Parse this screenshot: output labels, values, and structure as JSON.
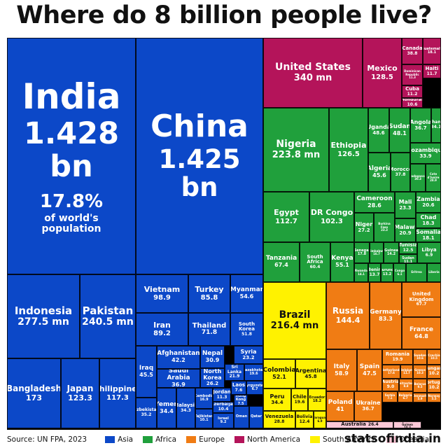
{
  "title": "Where do 8 billion people live?",
  "source": "Source: UN FPA, 2023",
  "brand": "statsofindia.in",
  "colors": {
    "Asia": "#0c48c8",
    "Africa": "#20a03c",
    "Europe": "#f07c14",
    "North America": "#b4145a",
    "South America": "#fff200",
    "Oceania": "#fbc8d7"
  },
  "legend": [
    "Asia",
    "Africa",
    "Europe",
    "North America",
    "South America",
    "Oceania"
  ],
  "chart_data": {
    "type": "treemap",
    "unit_note": "population in millions",
    "items": [
      {
        "name": "India",
        "value": "1.428 bn",
        "extra": "17.8%",
        "extra2": "of world's population",
        "region": "Asia",
        "n": 1428
      },
      {
        "name": "China",
        "value": "1.425 bn",
        "region": "Asia",
        "n": 1425
      },
      {
        "name": "Indonesia",
        "value": "277.5 mn",
        "region": "Asia",
        "n": 277.5
      },
      {
        "name": "Pakistan",
        "value": "240.5 mn",
        "region": "Asia",
        "n": 240.5
      },
      {
        "name": "Bangladesh",
        "value": "173",
        "region": "Asia",
        "n": 173
      },
      {
        "name": "Japan",
        "value": "123.3",
        "region": "Asia",
        "n": 123.3
      },
      {
        "name": "Philippines",
        "value": "117.3",
        "region": "Asia",
        "n": 117.3
      },
      {
        "name": "Vietnam",
        "value": "98.9",
        "region": "Asia",
        "n": 98.9
      },
      {
        "name": "Turkey",
        "value": "85.8",
        "region": "Asia",
        "n": 85.8
      },
      {
        "name": "Myanmar",
        "value": "54.6",
        "region": "Asia",
        "n": 54.6
      },
      {
        "name": "Iran",
        "value": "89.2",
        "region": "Asia",
        "n": 89.2
      },
      {
        "name": "Thailand",
        "value": "71.8",
        "region": "Asia",
        "n": 71.8
      },
      {
        "name": "South Korea",
        "value": "51.8",
        "region": "Asia",
        "n": 51.8
      },
      {
        "name": "Iraq",
        "value": "45.5",
        "region": "Asia",
        "n": 45.5
      },
      {
        "name": "Afghanistan",
        "value": "42.2",
        "region": "Asia",
        "n": 42.2
      },
      {
        "name": "Saudi Arabia",
        "value": "36.9",
        "region": "Asia",
        "n": 36.9
      },
      {
        "name": "Nepal",
        "value": "30.9",
        "region": "Asia",
        "n": 30.9
      },
      {
        "name": "Syria",
        "value": "23.2",
        "region": "Asia",
        "n": 23.2
      },
      {
        "name": "North Korea",
        "value": "26.2",
        "region": "Asia",
        "n": 26.2
      },
      {
        "name": "Sri Lanka",
        "value": "21.9",
        "region": "Asia",
        "n": 21.9
      },
      {
        "name": "Kazakhstan",
        "value": "19.6",
        "region": "Asia",
        "n": 19.6
      },
      {
        "name": "Uzbekistan",
        "value": "35.2",
        "region": "Asia",
        "n": 35.2
      },
      {
        "name": "Yemen",
        "value": "34.4",
        "region": "Asia",
        "n": 34.4
      },
      {
        "name": "Malaysia",
        "value": "34.3",
        "region": "Asia",
        "n": 34.3
      },
      {
        "name": "Jordan",
        "value": "11.3",
        "region": "Asia",
        "n": 11.3
      },
      {
        "name": "Laos",
        "value": "7.6",
        "region": "Asia",
        "n": 7.6
      },
      {
        "name": "Kyrgyzstan",
        "value": "6.7",
        "region": "Asia",
        "n": 6.7
      },
      {
        "name": "Cambodia",
        "value": "16.9",
        "region": "Asia",
        "n": 16.9
      },
      {
        "name": "Azerbaijan",
        "value": "10.4",
        "region": "Asia",
        "n": 10.4
      },
      {
        "name": "Hong Kong",
        "value": "7.5",
        "region": "Asia",
        "n": 7.5
      },
      {
        "name": "Tajikistan",
        "value": "10.1",
        "region": "Asia",
        "n": 10.1
      },
      {
        "name": "Israel",
        "value": "9.2",
        "region": "Asia",
        "n": 9.2
      },
      {
        "name": "Oman",
        "value": "",
        "region": "Asia",
        "n": 4.6
      },
      {
        "name": "Qatar",
        "value": "",
        "region": "Asia",
        "n": 2.7
      },
      {
        "name": "United States",
        "value": "340 mn",
        "region": "North America",
        "n": 340
      },
      {
        "name": "Mexico",
        "value": "128.5",
        "region": "North America",
        "n": 128.5
      },
      {
        "name": "Canada",
        "value": "38.8",
        "region": "North America",
        "n": 38.8
      },
      {
        "name": "Guatemala",
        "value": "18.1",
        "region": "North America",
        "n": 18.1
      },
      {
        "name": "Haiti",
        "value": "11.7",
        "region": "North America",
        "n": 11.7
      },
      {
        "name": "Dominican Republic",
        "value": "11.3",
        "region": "North America",
        "n": 11.3
      },
      {
        "name": "Cuba",
        "value": "11.2",
        "region": "North America",
        "n": 11.2
      },
      {
        "name": "Honduras",
        "value": "10.6",
        "region": "North America",
        "n": 10.6
      },
      {
        "name": "Nigeria",
        "value": "223.8 mn",
        "region": "Africa",
        "n": 223.8
      },
      {
        "name": "Ethiopia",
        "value": "126.5",
        "region": "Africa",
        "n": 126.5
      },
      {
        "name": "Uganda",
        "value": "48.6",
        "region": "Africa",
        "n": 48.6
      },
      {
        "name": "Sudan",
        "value": "48.1",
        "region": "Africa",
        "n": 48.1
      },
      {
        "name": "Angola",
        "value": "36.7",
        "region": "Africa",
        "n": 36.7
      },
      {
        "name": "Ghana",
        "value": "34.1",
        "region": "Africa",
        "n": 34.1
      },
      {
        "name": "Mozambique",
        "value": "33.9",
        "region": "Africa",
        "n": 33.9
      },
      {
        "name": "Algeria",
        "value": "45.6",
        "region": "Africa",
        "n": 45.6
      },
      {
        "name": "Morocco",
        "value": "37.8",
        "region": "Africa",
        "n": 37.8
      },
      {
        "name": "Madagascar",
        "value": "30.3",
        "region": "Africa",
        "n": 30.3
      },
      {
        "name": "Cote d'Ivoire",
        "value": "28.9",
        "region": "Africa",
        "n": 28.9
      },
      {
        "name": "Egypt",
        "value": "112.7",
        "region": "Africa",
        "n": 112.7
      },
      {
        "name": "DR Congo",
        "value": "102.3",
        "region": "Africa",
        "n": 102.3
      },
      {
        "name": "Cameroon",
        "value": "28.6",
        "region": "Africa",
        "n": 28.6
      },
      {
        "name": "Mali",
        "value": "23.3",
        "region": "Africa",
        "n": 23.3
      },
      {
        "name": "Zambia",
        "value": "20.6",
        "region": "Africa",
        "n": 20.6
      },
      {
        "name": "Niger",
        "value": "27.2",
        "region": "Africa",
        "n": 27.2
      },
      {
        "name": "Burkina Faso",
        "value": "23.3",
        "region": "Africa",
        "n": 23.3
      },
      {
        "name": "Malawi",
        "value": "20.9",
        "region": "Africa",
        "n": 20.9
      },
      {
        "name": "Chad",
        "value": "18.3",
        "region": "Africa",
        "n": 18.3
      },
      {
        "name": "Somalia",
        "value": "18.1",
        "region": "Africa",
        "n": 18.1
      },
      {
        "name": "Tanzania",
        "value": "67.4",
        "region": "Africa",
        "n": 67.4
      },
      {
        "name": "South Africa",
        "value": "60.4",
        "region": "Africa",
        "n": 60.4
      },
      {
        "name": "Kenya",
        "value": "55.1",
        "region": "Africa",
        "n": 55.1
      },
      {
        "name": "Senegal",
        "value": "17.8",
        "region": "Africa",
        "n": 17.8
      },
      {
        "name": "Zimbabwe",
        "value": "16.7",
        "region": "Africa",
        "n": 16.7
      },
      {
        "name": "Guinea",
        "value": "14.2",
        "region": "Africa",
        "n": 14.2
      },
      {
        "name": "Tunisia",
        "value": "12.5",
        "region": "Africa",
        "n": 12.5
      },
      {
        "name": "South Sudan",
        "value": "11.1",
        "region": "Africa",
        "n": 11.1
      },
      {
        "name": "Libya",
        "value": "6.9",
        "region": "Africa",
        "n": 6.9
      },
      {
        "name": "Rwanda",
        "value": "14.1",
        "region": "Africa",
        "n": 14.1
      },
      {
        "name": "Benin",
        "value": "13.7",
        "region": "Africa",
        "n": 13.7
      },
      {
        "name": "Burundi",
        "value": "13.2",
        "region": "Africa",
        "n": 13.2
      },
      {
        "name": "Congo",
        "value": "6.1",
        "region": "Africa",
        "n": 6.1
      },
      {
        "name": "Eritrea",
        "value": "",
        "region": "Africa",
        "n": 3.7
      },
      {
        "name": "Liberia",
        "value": "",
        "region": "Africa",
        "n": 5.4
      },
      {
        "name": "Brazil",
        "value": "216.4 mn",
        "region": "South America",
        "n": 216.4
      },
      {
        "name": "Colombia",
        "value": "52.1",
        "region": "South America",
        "n": 52.1
      },
      {
        "name": "Argentina",
        "value": "45.8",
        "region": "South America",
        "n": 45.8
      },
      {
        "name": "Peru",
        "value": "34.4",
        "region": "South America",
        "n": 34.4
      },
      {
        "name": "Chile",
        "value": "19.6",
        "region": "South America",
        "n": 19.6
      },
      {
        "name": "Ecuador",
        "value": "18.2",
        "region": "South America",
        "n": 18.2
      },
      {
        "name": "Venezuela",
        "value": "28.8",
        "region": "South America",
        "n": 28.8
      },
      {
        "name": "Bolivia",
        "value": "12.4",
        "region": "South America",
        "n": 12.4
      },
      {
        "name": "Paraguay",
        "value": "6.9",
        "region": "South America",
        "n": 6.9
      },
      {
        "name": "Russia",
        "value": "144.4",
        "region": "Europe",
        "n": 144.4
      },
      {
        "name": "Germany",
        "value": "83.3",
        "region": "Europe",
        "n": 83.3
      },
      {
        "name": "United Kingdom",
        "value": "67.7",
        "region": "Europe",
        "n": 67.7
      },
      {
        "name": "France",
        "value": "64.8",
        "region": "Europe",
        "n": 64.8
      },
      {
        "name": "Italy",
        "value": "58.9",
        "region": "Europe",
        "n": 58.9
      },
      {
        "name": "Spain",
        "value": "47.5",
        "region": "Europe",
        "n": 47.5
      },
      {
        "name": "Romania",
        "value": "19.9",
        "region": "Europe",
        "n": 19.9
      },
      {
        "name": "Sweden",
        "value": "10.6",
        "region": "Europe",
        "n": 10.6
      },
      {
        "name": "Czechia",
        "value": "10.5",
        "region": "Europe",
        "n": 10.5
      },
      {
        "name": "Netherlands",
        "value": "17.6",
        "region": "Europe",
        "n": 17.6
      },
      {
        "name": "Belgium",
        "value": "11.7",
        "region": "Europe",
        "n": 11.7
      },
      {
        "name": "Greece",
        "value": "10.3",
        "region": "Europe",
        "n": 10.3
      },
      {
        "name": "Hungary",
        "value": "10.2",
        "region": "Europe",
        "n": 10.2
      },
      {
        "name": "Portugal",
        "value": "10.2",
        "region": "Europe",
        "n": 10.2
      },
      {
        "name": "Belarus",
        "value": "9.5",
        "region": "Europe",
        "n": 9.5
      },
      {
        "name": "Austria",
        "value": "9.0",
        "region": "Europe",
        "n": 9.0
      },
      {
        "name": "Switzerland",
        "value": "8.8",
        "region": "Europe",
        "n": 8.8
      },
      {
        "name": "Serbia",
        "value": "7.1",
        "region": "Europe",
        "n": 7.1
      },
      {
        "name": "Bulgaria",
        "value": "6.7",
        "region": "Europe",
        "n": 6.7
      },
      {
        "name": "Denmark",
        "value": "5.9",
        "region": "Europe",
        "n": 5.9
      },
      {
        "name": "Norway",
        "value": "5.5",
        "region": "Europe",
        "n": 5.5
      },
      {
        "name": "Poland",
        "value": "41",
        "region": "Europe",
        "n": 41
      },
      {
        "name": "Ukraine",
        "value": "36.7",
        "region": "Europe",
        "n": 36.7
      },
      {
        "name": "Australia",
        "value": "26.4",
        "region": "Oceania",
        "n": 26.4
      },
      {
        "name": "Papua New Guinea",
        "value": "10.3",
        "region": "Oceania",
        "n": 10.3
      }
    ]
  }
}
